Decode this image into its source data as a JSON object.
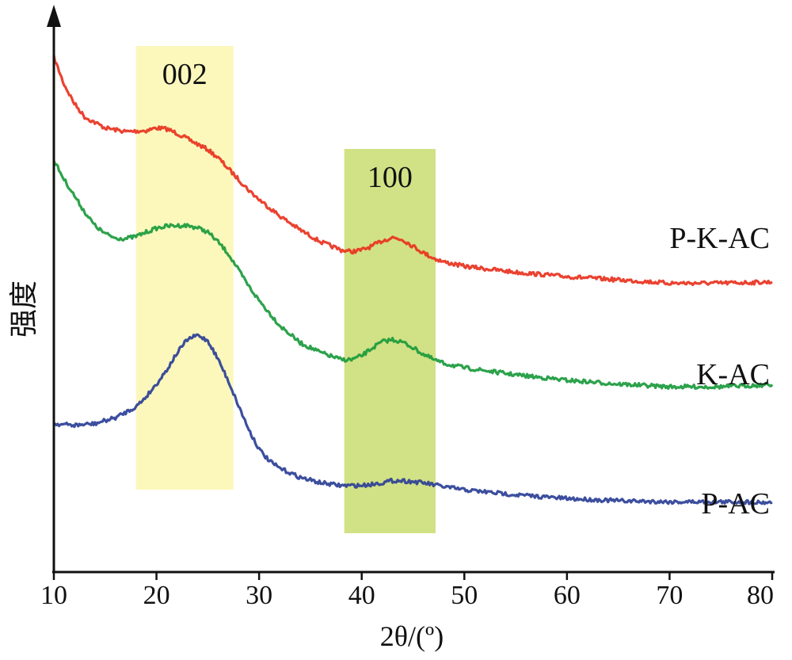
{
  "chart_data": {
    "type": "line",
    "xlabel": "2θ/(º)",
    "ylabel": "强度",
    "xlim": [
      10,
      80
    ],
    "x_ticks": [
      "10",
      "20",
      "30",
      "40",
      "50",
      "60",
      "70",
      "80"
    ],
    "y_ticks": [],
    "grid": false,
    "legend": "none (series names printed at right end of each curve)",
    "colors": {
      "P-K-AC": "#e8321e",
      "K-AC": "#1a9a3c",
      "P-AC": "#2b3f96",
      "band_002": "#fbf7b0",
      "band_100": "#cfdf7e"
    },
    "bands": [
      {
        "label": "002",
        "x_range": [
          18,
          27.5
        ]
      },
      {
        "label": "100",
        "x_range": [
          38.3,
          47.2
        ]
      }
    ],
    "y_units": "arbitrary intensity (relative, 0–100)",
    "series": [
      {
        "name": "P-K-AC",
        "x": [
          10,
          11,
          12,
          13,
          15,
          17,
          19,
          20,
          21,
          22,
          23,
          24,
          25,
          26,
          27,
          28,
          29,
          30,
          32,
          34,
          36,
          38,
          39,
          40,
          41,
          42,
          43,
          44,
          45,
          46,
          47,
          48,
          50,
          55,
          60,
          65,
          70,
          75,
          80
        ],
        "y": [
          89,
          84,
          80.5,
          78,
          76,
          75.3,
          75.5,
          76,
          75.8,
          75,
          74,
          73,
          72,
          70.5,
          68.5,
          66.5,
          64.5,
          62.8,
          59.8,
          57.2,
          55,
          53.5,
          53.2,
          53.5,
          54.2,
          55.2,
          55.8,
          55.4,
          54.2,
          53,
          52,
          51.3,
          50.5,
          49.4,
          48.6,
          48,
          47.4,
          47.4,
          47.6
        ]
      },
      {
        "name": "K-AC",
        "x": [
          10,
          11,
          12,
          13,
          14,
          15,
          16,
          17,
          18,
          19,
          20,
          21,
          22,
          23,
          24,
          25,
          26,
          27,
          28,
          29,
          30,
          32,
          34,
          36,
          38,
          39,
          40,
          41,
          42,
          43,
          44,
          45,
          46,
          47,
          48,
          50,
          55,
          60,
          65,
          70,
          75,
          80
        ],
        "y": [
          70,
          66.5,
          63.5,
          60.5,
          58,
          56.5,
          55.7,
          55.6,
          56,
          56.8,
          57.5,
          57.9,
          58,
          58,
          57.6,
          56.8,
          55,
          52.8,
          49.8,
          46.8,
          44.2,
          39.6,
          36.4,
          34.6,
          33.3,
          33.3,
          34,
          35.4,
          36.6,
          37,
          36.5,
          35.5,
          34.3,
          33.3,
          32.6,
          31.8,
          30.5,
          29.5,
          28.8,
          28.3,
          28.3,
          28.7
        ]
      },
      {
        "name": "P-AC",
        "x": [
          10,
          12,
          14,
          16,
          18,
          19,
          20,
          21,
          22,
          23,
          24,
          25,
          26,
          27,
          28,
          29,
          30,
          31,
          32,
          34,
          36,
          38,
          40,
          42,
          43,
          44,
          46,
          48,
          50,
          55,
          60,
          65,
          70,
          75,
          80
        ],
        "y": [
          21.5,
          21.2,
          21.5,
          22.6,
          24.6,
          26.5,
          28.8,
          31.4,
          34.5,
          37,
          37.8,
          36.8,
          33.4,
          29.4,
          24.8,
          20.4,
          16.8,
          14.6,
          13.3,
          11.6,
          10.6,
          10.1,
          10.1,
          10.6,
          11,
          11,
          10.6,
          9.9,
          9.3,
          8.4,
          7.7,
          7.3,
          7.1,
          7.1,
          7
        ]
      }
    ]
  }
}
